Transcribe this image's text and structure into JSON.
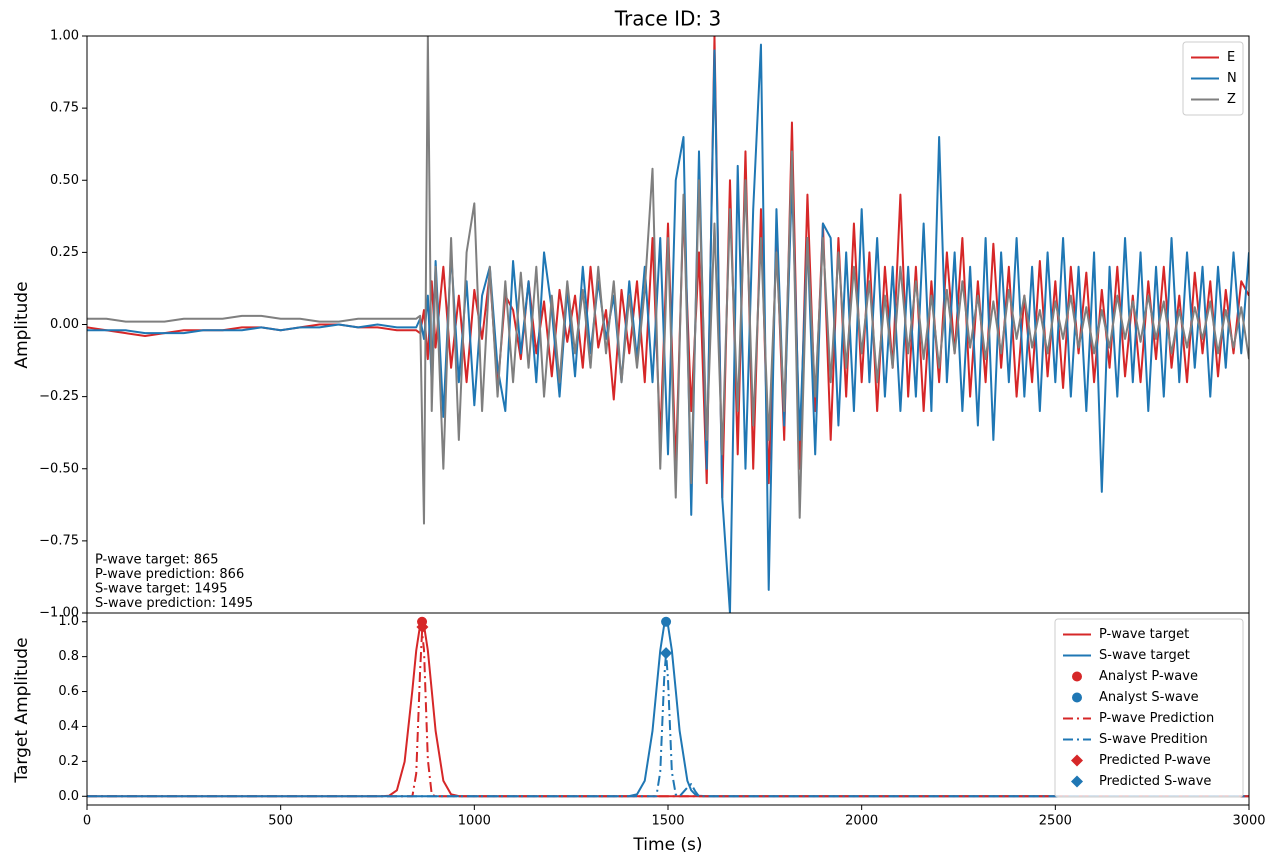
{
  "chart_data": [
    {
      "type": "line",
      "title": "Trace ID: 3",
      "ylabel": "Amplitude",
      "xlim": [
        0,
        3000
      ],
      "ylim": [
        -1,
        1
      ],
      "yticks": [
        {
          "value": -1,
          "label": "−1.00"
        },
        {
          "value": -0.75,
          "label": "−0.75"
        },
        {
          "value": -0.5,
          "label": "−0.50"
        },
        {
          "value": -0.25,
          "label": "−0.25"
        },
        {
          "value": 0,
          "label": "0.00"
        },
        {
          "value": 0.25,
          "label": "0.25"
        },
        {
          "value": 0.5,
          "label": "0.50"
        },
        {
          "value": 0.75,
          "label": "0.75"
        },
        {
          "value": 1,
          "label": "1.00"
        }
      ],
      "legend": "upper right",
      "annotations": [
        "P-wave target: 865",
        "P-wave prediction: 866",
        "S-wave target: 1495",
        "S-wave prediction: 1495"
      ],
      "x": [
        0,
        50,
        100,
        150,
        200,
        250,
        300,
        350,
        400,
        450,
        500,
        550,
        600,
        650,
        700,
        750,
        800,
        850,
        860,
        870,
        880,
        890,
        900,
        920,
        940,
        960,
        980,
        1000,
        1020,
        1040,
        1060,
        1080,
        1100,
        1120,
        1140,
        1160,
        1180,
        1200,
        1220,
        1240,
        1260,
        1280,
        1300,
        1320,
        1340,
        1360,
        1380,
        1400,
        1420,
        1440,
        1460,
        1480,
        1500,
        1520,
        1540,
        1560,
        1580,
        1600,
        1620,
        1640,
        1660,
        1680,
        1700,
        1720,
        1740,
        1760,
        1780,
        1800,
        1820,
        1840,
        1860,
        1880,
        1900,
        1920,
        1940,
        1960,
        1980,
        2000,
        2020,
        2040,
        2060,
        2080,
        2100,
        2120,
        2140,
        2160,
        2180,
        2200,
        2220,
        2240,
        2260,
        2280,
        2300,
        2320,
        2340,
        2360,
        2380,
        2400,
        2420,
        2440,
        2460,
        2480,
        2500,
        2520,
        2540,
        2560,
        2580,
        2600,
        2620,
        2640,
        2660,
        2680,
        2700,
        2720,
        2740,
        2760,
        2780,
        2800,
        2820,
        2840,
        2860,
        2880,
        2900,
        2920,
        2940,
        2960,
        2980,
        3000
      ],
      "series": [
        {
          "name": "E",
          "color": "#d62728",
          "values": [
            -0.01,
            -0.02,
            -0.03,
            -0.04,
            -0.03,
            -0.02,
            -0.02,
            -0.02,
            -0.01,
            -0.01,
            -0.02,
            -0.01,
            0.0,
            0.0,
            -0.01,
            -0.01,
            -0.02,
            -0.02,
            -0.03,
            0.05,
            -0.12,
            0.15,
            -0.08,
            0.2,
            -0.15,
            0.1,
            -0.2,
            0.12,
            -0.05,
            0.18,
            -0.22,
            0.1,
            0.05,
            -0.12,
            0.15,
            -0.1,
            0.08,
            -0.18,
            0.12,
            -0.06,
            0.1,
            -0.15,
            0.2,
            -0.08,
            0.05,
            -0.26,
            0.12,
            -0.1,
            0.15,
            -0.2,
            0.3,
            -0.4,
            0.35,
            -0.5,
            0.4,
            -0.3,
            0.25,
            -0.55,
            1.0,
            -0.6,
            0.5,
            -0.45,
            0.6,
            -0.5,
            0.4,
            -0.55,
            0.3,
            -0.4,
            0.7,
            -0.5,
            0.45,
            -0.3,
            0.35,
            -0.4,
            0.3,
            -0.25,
            0.35,
            -0.2,
            0.25,
            -0.3,
            0.2,
            -0.15,
            0.45,
            -0.25,
            0.2,
            -0.3,
            0.15,
            -0.2,
            0.25,
            -0.1,
            0.3,
            -0.25,
            0.15,
            -0.2,
            0.28,
            -0.15,
            0.2,
            -0.25,
            0.1,
            -0.2,
            0.22,
            -0.18,
            0.15,
            -0.22,
            0.2,
            -0.1,
            0.18,
            -0.2,
            0.12,
            -0.15,
            0.2,
            -0.18,
            0.1,
            -0.2,
            0.15,
            -0.12,
            0.2,
            -0.15,
            0.1,
            -0.2,
            0.18,
            -0.1,
            0.15,
            -0.18,
            0.12,
            -0.1,
            0.15,
            0.1
          ]
        },
        {
          "name": "N",
          "color": "#1f77b4",
          "values": [
            -0.02,
            -0.02,
            -0.02,
            -0.03,
            -0.03,
            -0.03,
            -0.02,
            -0.02,
            -0.02,
            -0.01,
            -0.02,
            -0.01,
            -0.01,
            0.0,
            -0.01,
            0.0,
            -0.01,
            -0.01,
            0.02,
            -0.05,
            0.1,
            -0.2,
            0.22,
            -0.32,
            0.25,
            -0.2,
            0.15,
            -0.28,
            0.1,
            0.2,
            -0.15,
            -0.3,
            0.22,
            -0.1,
            0.15,
            -0.2,
            0.25,
            0.05,
            -0.25,
            0.12,
            -0.18,
            0.2,
            -0.1,
            0.15,
            -0.05,
            0.1,
            -0.2,
            0.15,
            -0.12,
            0.2,
            -0.2,
            0.3,
            -0.45,
            0.5,
            0.65,
            -0.66,
            0.6,
            -0.5,
            0.95,
            -0.6,
            -1.0,
            0.55,
            -0.5,
            0.4,
            0.97,
            -0.92,
            0.4,
            -0.35,
            0.5,
            -0.4,
            0.3,
            -0.45,
            0.35,
            0.3,
            -0.35,
            0.25,
            -0.3,
            0.4,
            -0.2,
            0.3,
            -0.25,
            0.2,
            -0.3,
            0.2,
            -0.25,
            0.35,
            -0.3,
            0.65,
            -0.2,
            0.25,
            -0.3,
            0.2,
            -0.35,
            0.3,
            -0.4,
            0.25,
            -0.2,
            0.3,
            -0.25,
            0.2,
            -0.3,
            0.25,
            -0.2,
            0.3,
            -0.25,
            0.2,
            -0.3,
            0.25,
            -0.58,
            0.2,
            -0.25,
            0.3,
            -0.2,
            0.25,
            -0.3,
            0.2,
            -0.25,
            0.3,
            -0.2,
            0.25,
            -0.15,
            0.2,
            -0.25,
            0.2,
            -0.15,
            0.25,
            -0.1,
            0.25
          ]
        },
        {
          "name": "Z",
          "color": "#7f7f7f",
          "values": [
            0.02,
            0.02,
            0.01,
            0.01,
            0.01,
            0.02,
            0.02,
            0.02,
            0.03,
            0.03,
            0.02,
            0.02,
            0.01,
            0.01,
            0.02,
            0.02,
            0.02,
            0.02,
            0.03,
            -0.69,
            1.0,
            -0.3,
            0.2,
            -0.5,
            0.3,
            -0.4,
            0.25,
            0.42,
            -0.3,
            0.2,
            -0.25,
            0.15,
            -0.2,
            0.18,
            -0.15,
            0.2,
            -0.25,
            0.1,
            -0.2,
            0.15,
            -0.1,
            0.12,
            -0.15,
            0.2,
            -0.1,
            0.15,
            -0.2,
            0.1,
            -0.15,
            0.12,
            0.54,
            -0.5,
            0.3,
            -0.6,
            0.45,
            -0.55,
            0.5,
            -0.4,
            0.35,
            -0.45,
            0.4,
            -0.3,
            0.5,
            -0.35,
            0.3,
            -0.4,
            0.25,
            -0.3,
            0.6,
            -0.67,
            0.3,
            -0.25,
            0.3,
            -0.2,
            0.25,
            -0.15,
            0.2,
            -0.1,
            0.15,
            -0.2,
            0.1,
            -0.15,
            0.2,
            -0.1,
            0.15,
            -0.12,
            0.1,
            -0.15,
            0.12,
            -0.1,
            0.15,
            -0.08,
            0.1,
            -0.12,
            0.08,
            -0.1,
            0.12,
            -0.05,
            0.1,
            -0.08,
            0.05,
            -0.1,
            0.08,
            -0.05,
            0.1,
            -0.08,
            0.06,
            -0.1,
            0.05,
            -0.08,
            0.1,
            -0.05,
            0.08,
            -0.06,
            0.1,
            -0.05,
            0.08,
            -0.1,
            0.05,
            -0.08,
            0.06,
            -0.05,
            0.08,
            -0.1,
            0.05,
            -0.08,
            0.06,
            -0.12
          ]
        }
      ]
    },
    {
      "type": "line",
      "xlabel": "Time (s)",
      "ylabel": "Target Amplitude",
      "xlim": [
        0,
        3000
      ],
      "ylim": [
        -0.05,
        1.05
      ],
      "xticks": [
        0,
        500,
        1000,
        1500,
        2000,
        2500,
        3000
      ],
      "yticks": [
        {
          "value": 0,
          "label": "0.0"
        },
        0.2,
        0.4,
        0.6,
        0.8,
        {
          "value": 1,
          "label": "1.0"
        }
      ],
      "legend": "upper right",
      "x": [
        0,
        700,
        760,
        780,
        800,
        820,
        840,
        850,
        860,
        865,
        870,
        880,
        890,
        900,
        920,
        940,
        960,
        1000,
        1350,
        1400,
        1420,
        1440,
        1460,
        1470,
        1480,
        1490,
        1495,
        1500,
        1510,
        1520,
        1530,
        1550,
        1560,
        1570,
        1580,
        1600,
        1650,
        3000
      ],
      "series": [
        {
          "name": "P-wave target",
          "kind": "line",
          "dash": "solid",
          "color": "#d62728",
          "values": [
            0,
            0,
            0,
            0.003,
            0.034,
            0.198,
            0.607,
            0.835,
            0.98,
            1,
            0.98,
            0.835,
            0.607,
            0.375,
            0.089,
            0.011,
            0.001,
            0,
            0,
            0,
            0,
            0,
            0,
            0,
            0,
            0,
            0,
            0,
            0,
            0,
            0,
            0,
            0,
            0,
            0,
            0,
            0,
            0
          ]
        },
        {
          "name": "S-wave target",
          "kind": "line",
          "dash": "solid",
          "color": "#1f77b4",
          "values": [
            0,
            0,
            0,
            0,
            0,
            0,
            0,
            0,
            0,
            0,
            0,
            0,
            0,
            0,
            0,
            0,
            0,
            0,
            0,
            0.001,
            0.011,
            0.089,
            0.375,
            0.607,
            0.835,
            0.98,
            1,
            0.98,
            0.835,
            0.607,
            0.375,
            0.089,
            0.034,
            0.011,
            0.003,
            0,
            0,
            0
          ]
        },
        {
          "name": "Analyst P-wave",
          "kind": "marker",
          "marker": "circle",
          "color": "#d62728",
          "x": [
            865
          ],
          "values": [
            1
          ]
        },
        {
          "name": "Analyst S-wave",
          "kind": "marker",
          "marker": "circle",
          "color": "#1f77b4",
          "x": [
            1495
          ],
          "values": [
            1
          ]
        },
        {
          "name": "P-wave Prediction",
          "kind": "line",
          "dash": "dashdot",
          "color": "#d62728",
          "values": [
            0,
            0,
            0,
            0,
            0,
            0,
            0,
            0.13,
            0.72,
            0.94,
            0.84,
            0.21,
            0.01,
            0,
            0,
            0,
            0,
            0,
            0,
            0,
            0,
            0,
            0,
            0,
            0,
            0,
            0,
            0,
            0,
            0,
            0,
            0,
            0,
            0,
            0,
            0,
            0,
            0
          ]
        },
        {
          "name": "S-wave Predition",
          "kind": "line",
          "dash": "dashdot",
          "color": "#1f77b4",
          "values": [
            0,
            0,
            0,
            0,
            0,
            0,
            0,
            0,
            0,
            0,
            0,
            0,
            0,
            0,
            0,
            0,
            0,
            0,
            0,
            0,
            0,
            0,
            0,
            0,
            0.14,
            0.67,
            0.82,
            0.67,
            0.14,
            0.01,
            0,
            0.05,
            0.07,
            0.03,
            0,
            0,
            0,
            0
          ]
        },
        {
          "name": "Predicted P-wave",
          "kind": "marker",
          "marker": "diamond",
          "color": "#d62728",
          "x": [
            866
          ],
          "values": [
            0.97
          ]
        },
        {
          "name": "Predicted S-wave",
          "kind": "marker",
          "marker": "diamond",
          "color": "#1f77b4",
          "x": [
            1495
          ],
          "values": [
            0.82
          ]
        }
      ]
    }
  ]
}
